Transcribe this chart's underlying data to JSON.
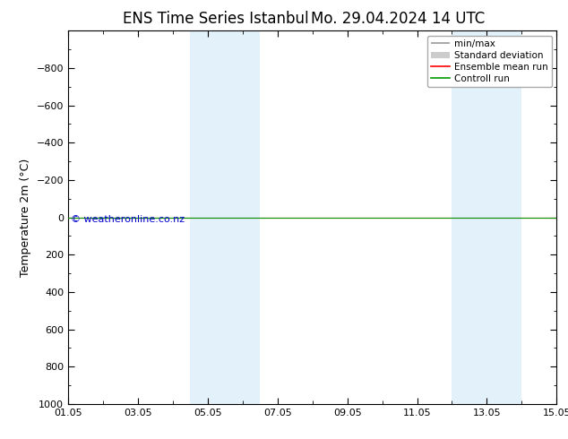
{
  "title_left": "ENS Time Series Istanbul",
  "title_right": "Mo. 29.04.2024 14 UTC",
  "ylabel": "Temperature 2m (°C)",
  "ylim": [
    -1000,
    1000
  ],
  "yticks": [
    -800,
    -600,
    -400,
    -200,
    0,
    200,
    400,
    600,
    800,
    1000
  ],
  "xlim": [
    0,
    14
  ],
  "xtick_labels": [
    "01.05",
    "03.05",
    "05.05",
    "07.05",
    "09.05",
    "11.05",
    "13.05",
    "15.05"
  ],
  "xtick_positions_days": [
    0,
    2,
    4,
    6,
    8,
    10,
    12,
    14
  ],
  "shaded_bands": [
    {
      "x_start_days": 3.5,
      "x_end_days": 5.5
    },
    {
      "x_start_days": 11.0,
      "x_end_days": 13.0
    }
  ],
  "control_run_y": 0,
  "ensemble_mean_y": 0,
  "watermark": "© weatheronline.co.nz",
  "watermark_color": "#0000cc",
  "legend_items": [
    "min/max",
    "Standard deviation",
    "Ensemble mean run",
    "Controll run"
  ],
  "legend_colors_line": [
    "#999999",
    "#cccccc",
    "#ff0000",
    "#009900"
  ],
  "control_run_color": "#009900",
  "ensemble_mean_color": "#ff0000",
  "background_color": "#ffffff",
  "plot_bg_color": "#ffffff",
  "shade_color": "#d0e8f8",
  "shade_alpha": 0.6,
  "title_fontsize": 12,
  "tick_fontsize": 8,
  "ylabel_fontsize": 9,
  "legend_fontsize": 7.5
}
